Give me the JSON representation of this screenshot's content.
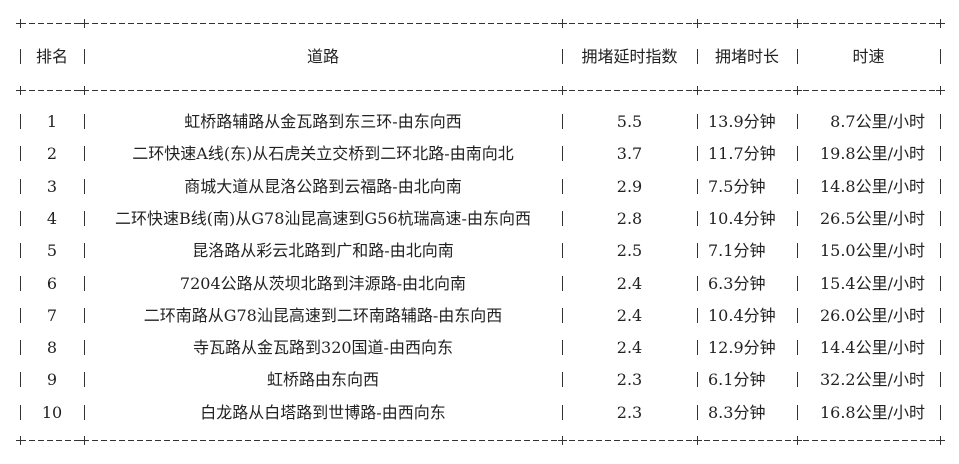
{
  "headers": [
    "排名",
    "道路",
    "拥堵延时指数",
    "拥堵时长",
    "时速"
  ],
  "rows": [
    {
      "rank": "1",
      "road": "虹桥路辅路从金瓦路到东三环-由东向西",
      "index": "5.5",
      "duration": "13.9分钟",
      "speed": "8.7公里/小时"
    },
    {
      "rank": "2",
      "road": "二环快速A线(东)从石虎关立交桥到二环北路-由南向北",
      "index": "3.7",
      "duration": "11.7分钟",
      "speed": "19.8公里/小时"
    },
    {
      "rank": "3",
      "road": "商城大道从昆洛公路到云福路-由北向南",
      "index": "2.9",
      "duration": "7.5分钟",
      "speed": "14.8公里/小时"
    },
    {
      "rank": "4",
      "road": "二环快速B线(南)从G78汕昆高速到G56杭瑞高速-由东向西",
      "index": "2.8",
      "duration": "10.4分钟",
      "speed": "26.5公里/小时"
    },
    {
      "rank": "5",
      "road": "昆洛路从彩云北路到广和路-由北向南",
      "index": "2.5",
      "duration": "7.1分钟",
      "speed": "15.0公里/小时"
    },
    {
      "rank": "6",
      "road": "7204公路从茨坝北路到沣源路-由北向南",
      "index": "2.4",
      "duration": "6.3分钟",
      "speed": "15.4公里/小时"
    },
    {
      "rank": "7",
      "road": "二环南路从G78汕昆高速到二环南路辅路-由东向西",
      "index": "2.4",
      "duration": "10.4分钟",
      "speed": "26.0公里/小时"
    },
    {
      "rank": "8",
      "road": "寺瓦路从金瓦路到320国道-由西向东",
      "index": "2.4",
      "duration": "12.9分钟",
      "speed": "14.4公里/小时"
    },
    {
      "rank": "9",
      "road": "虹桥路由东向西",
      "index": "2.3",
      "duration": "6.1分钟",
      "speed": "32.2公里/小时"
    },
    {
      "rank": "10",
      "road": "白龙路从白塔路到世博路-由西向东",
      "index": "2.3",
      "duration": "8.3分钟",
      "speed": "16.8公里/小时"
    }
  ]
}
